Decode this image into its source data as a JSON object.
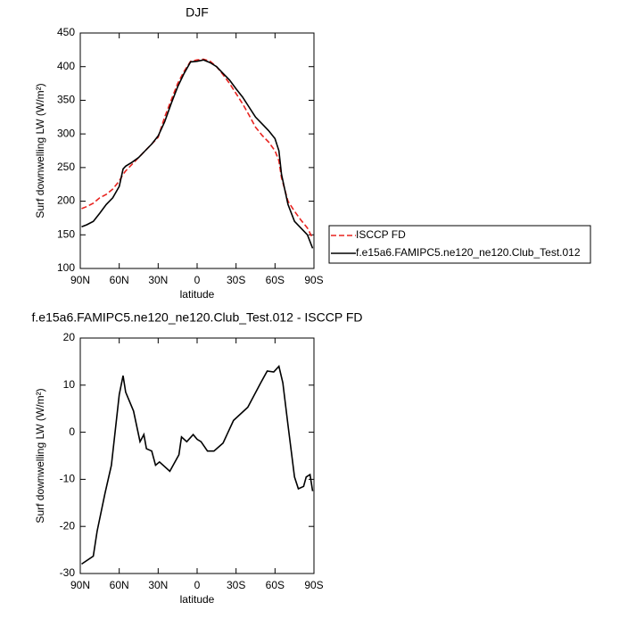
{
  "chart_data": [
    {
      "type": "line",
      "title": "DJF",
      "xlabel": "latitude",
      "ylabel": "Surf downwelling LW (W/m²)",
      "x": [
        89,
        85,
        80,
        75,
        70,
        65,
        60,
        57,
        55,
        50,
        45,
        40,
        35,
        30,
        25,
        20,
        15,
        10,
        5,
        0,
        -5,
        -10,
        -15,
        -20,
        -25,
        -30,
        -35,
        -40,
        -45,
        -50,
        -55,
        -60,
        -63,
        -65,
        -70,
        -75,
        -80,
        -85,
        -89
      ],
      "series": [
        {
          "name": "ISCCP FD",
          "color": "#e8231f",
          "dashed": true,
          "values": [
            189,
            192,
            197,
            205,
            210,
            218,
            230,
            240,
            245,
            255,
            265,
            275,
            285,
            295,
            325,
            350,
            375,
            393,
            408,
            410,
            411,
            408,
            400,
            388,
            375,
            360,
            345,
            328,
            310,
            298,
            288,
            275,
            260,
            235,
            200,
            185,
            172,
            160,
            145
          ]
        },
        {
          "name": "f.e15a6.FAMIPC5.ne120_ne120.Club_Test.012",
          "color": "#000000",
          "dashed": false,
          "values": [
            162,
            165,
            170,
            182,
            195,
            205,
            222,
            248,
            252,
            258,
            265,
            275,
            285,
            297,
            318,
            345,
            370,
            390,
            407,
            408,
            410,
            406,
            400,
            390,
            380,
            367,
            355,
            340,
            325,
            315,
            305,
            293,
            275,
            240,
            195,
            170,
            160,
            150,
            130
          ]
        }
      ],
      "xlim": [
        90,
        -90
      ],
      "xticks": [
        {
          "value": 90,
          "label": "90N"
        },
        {
          "value": 60,
          "label": "60N"
        },
        {
          "value": 30,
          "label": "30N"
        },
        0,
        {
          "value": -30,
          "label": "30S"
        },
        {
          "value": -60,
          "label": "60S"
        },
        {
          "value": -90,
          "label": "90S"
        }
      ],
      "ylim": [
        100,
        450
      ],
      "yticks": [
        100,
        150,
        200,
        250,
        300,
        350,
        400,
        450
      ],
      "legend": "right"
    },
    {
      "type": "line",
      "title": "f.e15a6.FAMIPC5.ne120_ne120.Club_Test.012 - ISCCP FD",
      "xlabel": "latitude",
      "ylabel": "Surf downwelling LW (W/m²)",
      "x": [
        89,
        80,
        77,
        71,
        66,
        60,
        57,
        55,
        49,
        44,
        41,
        39,
        35,
        32,
        29,
        21,
        14,
        12,
        8,
        3,
        0,
        -3,
        -8,
        -13,
        -20,
        -28,
        -39,
        -49,
        -54,
        -59,
        -63,
        -66,
        -70,
        -75,
        -78,
        -82,
        -84,
        -87,
        -89
      ],
      "values": [
        -28,
        -26.3,
        -21,
        -13,
        -7,
        8,
        12,
        8.5,
        4.5,
        -2,
        -0.5,
        -3.5,
        -4,
        -7,
        -6.3,
        -8.3,
        -4.8,
        -1,
        -2,
        -0.5,
        -1.5,
        -2,
        -4,
        -4,
        -2.3,
        2.5,
        5.3,
        10.5,
        13,
        12.8,
        14,
        10.5,
        1.5,
        -9.5,
        -12,
        -11.5,
        -9.5,
        -9,
        -12.5
      ],
      "color": "#000000",
      "xlim": [
        90,
        -90
      ],
      "xticks": [
        {
          "value": 90,
          "label": "90N"
        },
        {
          "value": 60,
          "label": "60N"
        },
        {
          "value": 30,
          "label": "30N"
        },
        0,
        {
          "value": -30,
          "label": "30S"
        },
        {
          "value": -60,
          "label": "60S"
        },
        {
          "value": -90,
          "label": "90S"
        }
      ],
      "ylim": [
        -30,
        20
      ],
      "yticks": [
        -30,
        -20,
        -10,
        0,
        10,
        20
      ]
    }
  ]
}
